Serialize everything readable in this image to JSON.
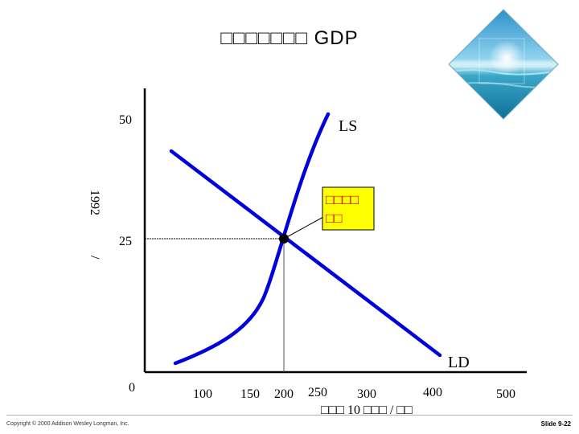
{
  "slide": {
    "title": "□□□□□□□ GDP",
    "copyright": "Copyright © 2000 Addison Wesley Longman, Inc.",
    "slide_number": "Slide 9-22"
  },
  "diagram": {
    "y_ticks": [
      "50",
      "25",
      "0"
    ],
    "x_ticks": [
      "100",
      "150",
      "200",
      "250",
      "300",
      "400",
      "500"
    ],
    "y_axis_label_1": "1992",
    "y_axis_label_2": "/",
    "x_axis_label": "□□□ 10 □□□ / □□",
    "supply_label": "LS",
    "demand_label": "LD",
    "callout_line1": "□□□□",
    "callout_line2": "□□"
  },
  "colors": {
    "curve": "#0000dd",
    "callout_fill": "#ffff00",
    "callout_text": "#cc0000"
  }
}
